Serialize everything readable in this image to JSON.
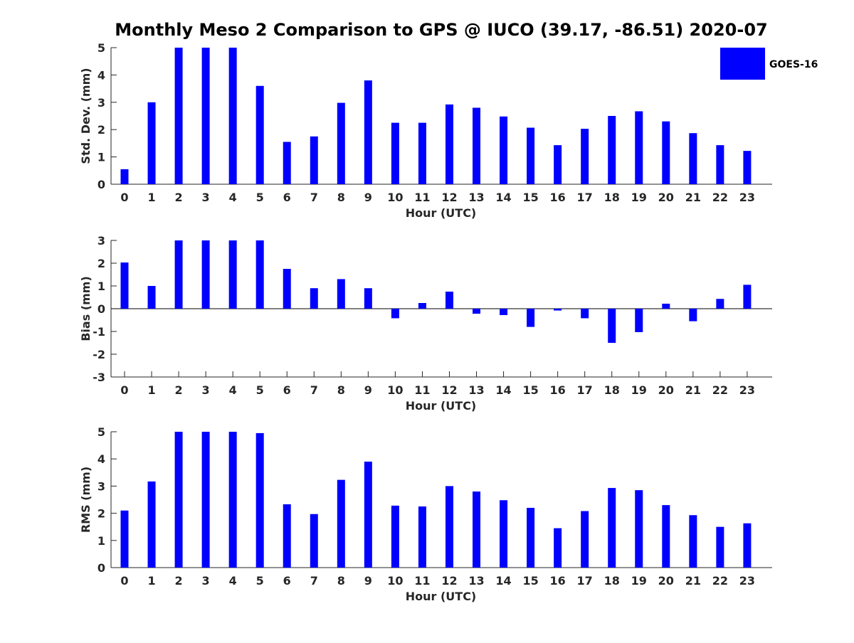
{
  "title": "Monthly Meso 2 Comparison to GPS @ IUCO (39.17, -86.51) 2020-07",
  "legend": {
    "label": "GOES-16",
    "color": "#0000ff",
    "placement": "top-right"
  },
  "chart_data": [
    {
      "type": "bar",
      "name": "std-dev",
      "xlabel": "Hour (UTC)",
      "ylabel": "Std. Dev. (mm)",
      "ylim": [
        0,
        5
      ],
      "yticks": [
        0,
        1,
        2,
        3,
        4,
        5
      ],
      "categories": [
        "0",
        "1",
        "2",
        "3",
        "4",
        "5",
        "6",
        "7",
        "8",
        "9",
        "10",
        "11",
        "12",
        "13",
        "14",
        "15",
        "16",
        "17",
        "18",
        "19",
        "20",
        "21",
        "22",
        "23"
      ],
      "series": [
        {
          "name": "GOES-16",
          "color": "#0000ff",
          "values": [
            0.55,
            3.0,
            5.0,
            5.0,
            5.0,
            3.6,
            1.55,
            1.75,
            2.98,
            3.8,
            2.25,
            2.25,
            2.92,
            2.8,
            2.48,
            2.07,
            1.43,
            2.03,
            2.5,
            2.67,
            2.3,
            1.87,
            1.43,
            1.22
          ]
        }
      ]
    },
    {
      "type": "bar",
      "name": "bias",
      "xlabel": "Hour (UTC)",
      "ylabel": "Bias (mm)",
      "ylim": [
        -3,
        3
      ],
      "yticks": [
        -3,
        -2,
        -1,
        0,
        1,
        2,
        3
      ],
      "zero_line": true,
      "categories": [
        "0",
        "1",
        "2",
        "3",
        "4",
        "5",
        "6",
        "7",
        "8",
        "9",
        "10",
        "11",
        "12",
        "13",
        "14",
        "15",
        "16",
        "17",
        "18",
        "19",
        "20",
        "21",
        "22",
        "23"
      ],
      "series": [
        {
          "name": "GOES-16",
          "color": "#0000ff",
          "values": [
            2.03,
            1.0,
            3.0,
            3.0,
            3.0,
            3.0,
            1.75,
            0.9,
            1.3,
            0.9,
            -0.42,
            0.25,
            0.75,
            -0.22,
            -0.28,
            -0.8,
            -0.08,
            -0.42,
            -1.5,
            -1.03,
            0.22,
            -0.55,
            0.43,
            1.05
          ]
        }
      ]
    },
    {
      "type": "bar",
      "name": "rms",
      "xlabel": "Hour (UTC)",
      "ylabel": "RMS (mm)",
      "ylim": [
        0,
        5
      ],
      "yticks": [
        0,
        1,
        2,
        3,
        4,
        5
      ],
      "categories": [
        "0",
        "1",
        "2",
        "3",
        "4",
        "5",
        "6",
        "7",
        "8",
        "9",
        "10",
        "11",
        "12",
        "13",
        "14",
        "15",
        "16",
        "17",
        "18",
        "19",
        "20",
        "21",
        "22",
        "23"
      ],
      "series": [
        {
          "name": "GOES-16",
          "color": "#0000ff",
          "values": [
            2.1,
            3.17,
            5.0,
            5.0,
            5.0,
            4.95,
            2.33,
            1.97,
            3.23,
            3.9,
            2.28,
            2.25,
            3.0,
            2.8,
            2.48,
            2.2,
            1.45,
            2.08,
            2.93,
            2.85,
            2.3,
            1.93,
            1.5,
            1.63
          ]
        }
      ]
    }
  ]
}
